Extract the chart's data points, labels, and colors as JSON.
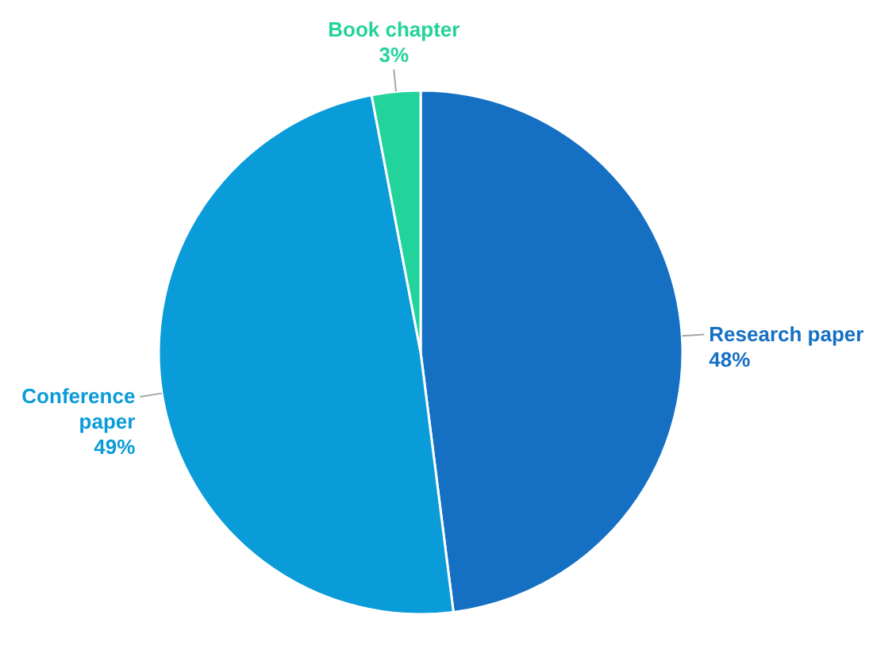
{
  "chart_data": {
    "type": "pie",
    "categories": [
      "Research paper",
      "Conference paper",
      "Book chapter"
    ],
    "values": [
      48,
      49,
      3
    ],
    "colors": [
      "#1570c4",
      "#0a9bd9",
      "#22d39b"
    ],
    "value_labels": [
      "48%",
      "49%",
      "3%"
    ]
  }
}
